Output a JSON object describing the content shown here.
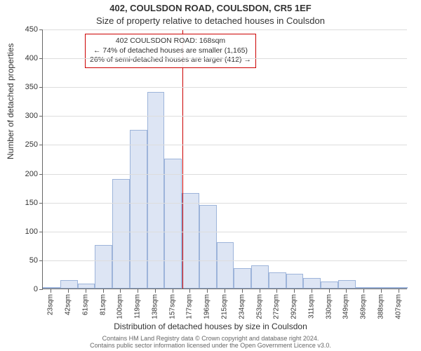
{
  "title_line1": "402, COULSDON ROAD, COULSDON, CR5 1EF",
  "title_line2": "Size of property relative to detached houses in Coulsdon",
  "y_axis": {
    "label": "Number of detached properties",
    "min": 0,
    "max": 450,
    "step": 50,
    "ticks": [
      0,
      50,
      100,
      150,
      200,
      250,
      300,
      350,
      400,
      450
    ]
  },
  "x_axis": {
    "label": "Distribution of detached houses by size in Coulsdon",
    "tick_labels": [
      "23sqm",
      "42sqm",
      "61sqm",
      "81sqm",
      "100sqm",
      "119sqm",
      "138sqm",
      "157sqm",
      "177sqm",
      "196sqm",
      "215sqm",
      "234sqm",
      "253sqm",
      "272sqm",
      "292sqm",
      "311sqm",
      "330sqm",
      "349sqm",
      "369sqm",
      "388sqm",
      "407sqm"
    ]
  },
  "histogram": {
    "type": "histogram",
    "bar_fill": "#dde5f4",
    "bar_border": "#9db4da",
    "grid_color": "#dddddd",
    "values": [
      1,
      15,
      8,
      75,
      190,
      275,
      340,
      225,
      165,
      145,
      80,
      35,
      40,
      28,
      25,
      18,
      12,
      15,
      1,
      1,
      1
    ]
  },
  "reference": {
    "color": "#cc0000",
    "x_value_sqm": 168,
    "annotation": {
      "line1": "402 COULSDON ROAD: 168sqm",
      "line2": "← 74% of detached houses are smaller (1,165)",
      "line3": "26% of semi-detached houses are larger (412) →"
    }
  },
  "footer": {
    "line1": "Contains HM Land Registry data © Crown copyright and database right 2024.",
    "line2": "Contains public sector information licensed under the Open Government Licence v3.0."
  }
}
